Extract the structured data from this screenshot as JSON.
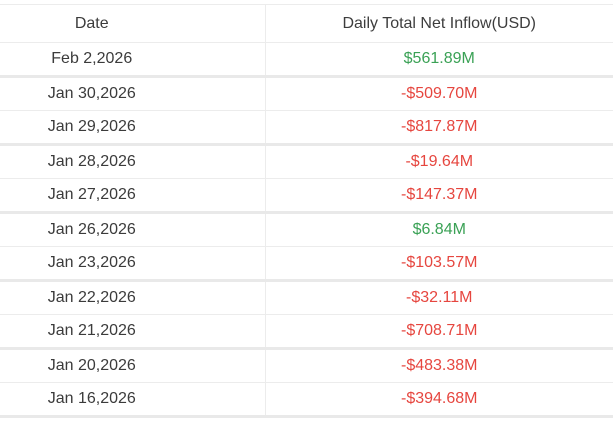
{
  "table": {
    "columns": [
      {
        "label": "Date"
      },
      {
        "label": "Daily Total Net Inflow(USD)"
      }
    ],
    "rows": [
      {
        "date": "Feb 2,2026",
        "value": "$561.89M",
        "direction": "positive"
      },
      {
        "date": "Jan 30,2026",
        "value": "-$509.70M",
        "direction": "negative"
      },
      {
        "date": "Jan 29,2026",
        "value": "-$817.87M",
        "direction": "negative"
      },
      {
        "date": "Jan 28,2026",
        "value": "-$19.64M",
        "direction": "negative"
      },
      {
        "date": "Jan 27,2026",
        "value": "-$147.37M",
        "direction": "negative"
      },
      {
        "date": "Jan 26,2026",
        "value": "$6.84M",
        "direction": "positive"
      },
      {
        "date": "Jan 23,2026",
        "value": "-$103.57M",
        "direction": "negative"
      },
      {
        "date": "Jan 22,2026",
        "value": "-$32.11M",
        "direction": "negative"
      },
      {
        "date": "Jan 21,2026",
        "value": "-$708.71M",
        "direction": "negative"
      },
      {
        "date": "Jan 20,2026",
        "value": "-$483.38M",
        "direction": "negative"
      },
      {
        "date": "Jan 16,2026",
        "value": "-$394.68M",
        "direction": "negative"
      }
    ]
  },
  "colors": {
    "positive": "#3aa155",
    "negative": "#e6463f",
    "header_text": "#3d3d3d",
    "date_text": "#3b3b3b",
    "separator_thin": "#ececec",
    "separator_thick": "#e9e9e9"
  }
}
